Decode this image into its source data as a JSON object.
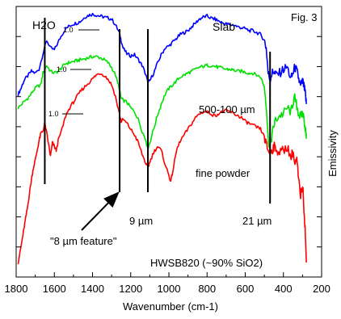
{
  "chart_data": {
    "type": "line",
    "xlabel": "Wavenumber  (cm-1)",
    "ylabel": "Emissivity",
    "xlim": [
      1800,
      200
    ],
    "x_reversed": true,
    "grid": false,
    "x_ticks": [
      1800,
      1600,
      1400,
      1200,
      1000,
      800,
      600,
      400,
      200
    ],
    "y_ticks_labeled": false,
    "series": [
      {
        "name": "Slab",
        "color": "#0000ff",
        "points": [
          [
            1790,
            0.14
          ],
          [
            1775,
            0.2
          ],
          [
            1760,
            0.28
          ],
          [
            1740,
            0.33
          ],
          [
            1720,
            0.38
          ],
          [
            1700,
            0.36
          ],
          [
            1680,
            0.4
          ],
          [
            1660,
            0.56
          ],
          [
            1640,
            0.7
          ],
          [
            1620,
            0.62
          ],
          [
            1600,
            0.6
          ],
          [
            1580,
            0.68
          ],
          [
            1560,
            0.76
          ],
          [
            1540,
            0.82
          ],
          [
            1520,
            0.85
          ],
          [
            1500,
            0.87
          ],
          [
            1480,
            0.88
          ],
          [
            1460,
            0.9
          ],
          [
            1440,
            0.94
          ],
          [
            1420,
            0.96
          ],
          [
            1400,
            0.97
          ],
          [
            1380,
            0.96
          ],
          [
            1360,
            0.95
          ],
          [
            1340,
            0.94
          ],
          [
            1320,
            0.93
          ],
          [
            1300,
            0.92
          ],
          [
            1280,
            0.86
          ],
          [
            1260,
            0.78
          ],
          [
            1250,
            0.7
          ],
          [
            1240,
            0.62
          ],
          [
            1220,
            0.56
          ],
          [
            1200,
            0.54
          ],
          [
            1180,
            0.55
          ],
          [
            1160,
            0.5
          ],
          [
            1140,
            0.44
          ],
          [
            1120,
            0.34
          ],
          [
            1110,
            0.26
          ],
          [
            1100,
            0.28
          ],
          [
            1080,
            0.36
          ],
          [
            1060,
            0.46
          ],
          [
            1040,
            0.55
          ],
          [
            1020,
            0.62
          ],
          [
            1000,
            0.64
          ],
          [
            980,
            0.68
          ],
          [
            960,
            0.72
          ],
          [
            940,
            0.76
          ],
          [
            920,
            0.78
          ],
          [
            900,
            0.8
          ],
          [
            880,
            0.84
          ],
          [
            860,
            0.88
          ],
          [
            840,
            0.92
          ],
          [
            820,
            0.94
          ],
          [
            800,
            0.95
          ],
          [
            780,
            0.93
          ],
          [
            760,
            0.92
          ],
          [
            740,
            0.9
          ],
          [
            720,
            0.88
          ],
          [
            700,
            0.87
          ],
          [
            680,
            0.86
          ],
          [
            660,
            0.86
          ],
          [
            640,
            0.84
          ],
          [
            620,
            0.83
          ],
          [
            600,
            0.82
          ],
          [
            580,
            0.8
          ],
          [
            560,
            0.8
          ],
          [
            540,
            0.78
          ],
          [
            520,
            0.76
          ],
          [
            500,
            0.7
          ],
          [
            490,
            0.62
          ],
          [
            480,
            0.36
          ],
          [
            470,
            0.3
          ],
          [
            460,
            0.36
          ],
          [
            450,
            0.38
          ],
          [
            440,
            0.34
          ],
          [
            420,
            0.36
          ],
          [
            400,
            0.4
          ],
          [
            380,
            0.42
          ],
          [
            360,
            0.3
          ],
          [
            350,
            0.36
          ],
          [
            340,
            0.42
          ],
          [
            330,
            0.38
          ],
          [
            320,
            0.3
          ],
          [
            310,
            0.22
          ],
          [
            300,
            0.28
          ],
          [
            290,
            0.2
          ],
          [
            285,
            0.14
          ],
          [
            280,
            0.04
          ]
        ]
      },
      {
        "name": "500-100 µm",
        "color": "#00e000",
        "points": [
          [
            1790,
            0.0
          ],
          [
            1770,
            0.04
          ],
          [
            1750,
            0.08
          ],
          [
            1730,
            0.12
          ],
          [
            1710,
            0.18
          ],
          [
            1690,
            0.22
          ],
          [
            1670,
            0.24
          ],
          [
            1660,
            0.36
          ],
          [
            1640,
            0.44
          ],
          [
            1620,
            0.38
          ],
          [
            1600,
            0.36
          ],
          [
            1580,
            0.38
          ],
          [
            1560,
            0.42
          ],
          [
            1540,
            0.46
          ],
          [
            1520,
            0.47
          ],
          [
            1500,
            0.48
          ],
          [
            1480,
            0.49
          ],
          [
            1460,
            0.5
          ],
          [
            1440,
            0.51
          ],
          [
            1420,
            0.52
          ],
          [
            1400,
            0.53
          ],
          [
            1380,
            0.53
          ],
          [
            1360,
            0.52
          ],
          [
            1340,
            0.5
          ],
          [
            1320,
            0.47
          ],
          [
            1300,
            0.42
          ],
          [
            1280,
            0.34
          ],
          [
            1260,
            0.2
          ],
          [
            1250,
            0.1
          ],
          [
            1240,
            0.08
          ],
          [
            1220,
            0.06
          ],
          [
            1200,
            0.0
          ],
          [
            1180,
            -0.04
          ],
          [
            1160,
            -0.12
          ],
          [
            1140,
            -0.24
          ],
          [
            1120,
            -0.34
          ],
          [
            1110,
            -0.42
          ],
          [
            1100,
            -0.36
          ],
          [
            1080,
            -0.22
          ],
          [
            1060,
            -0.08
          ],
          [
            1040,
            0.04
          ],
          [
            1020,
            0.14
          ],
          [
            1000,
            0.2
          ],
          [
            980,
            0.24
          ],
          [
            960,
            0.28
          ],
          [
            940,
            0.32
          ],
          [
            920,
            0.34
          ],
          [
            900,
            0.36
          ],
          [
            880,
            0.38
          ],
          [
            860,
            0.4
          ],
          [
            840,
            0.42
          ],
          [
            820,
            0.43
          ],
          [
            800,
            0.44
          ],
          [
            780,
            0.44
          ],
          [
            760,
            0.43
          ],
          [
            740,
            0.42
          ],
          [
            720,
            0.41
          ],
          [
            700,
            0.4
          ],
          [
            680,
            0.4
          ],
          [
            660,
            0.39
          ],
          [
            640,
            0.38
          ],
          [
            620,
            0.38
          ],
          [
            600,
            0.37
          ],
          [
            580,
            0.36
          ],
          [
            560,
            0.36
          ],
          [
            540,
            0.34
          ],
          [
            520,
            0.32
          ],
          [
            500,
            0.22
          ],
          [
            490,
            0.04
          ],
          [
            480,
            -0.32
          ],
          [
            470,
            -0.4
          ],
          [
            460,
            -0.28
          ],
          [
            450,
            -0.18
          ],
          [
            440,
            -0.12
          ],
          [
            420,
            -0.08
          ],
          [
            400,
            -0.06
          ],
          [
            380,
            0.0
          ],
          [
            360,
            -0.04
          ],
          [
            350,
            0.06
          ],
          [
            340,
            0.1
          ],
          [
            330,
            0.02
          ],
          [
            320,
            -0.06
          ],
          [
            310,
            -0.1
          ],
          [
            300,
            -0.04
          ],
          [
            290,
            -0.14
          ],
          [
            285,
            -0.22
          ],
          [
            280,
            -0.32
          ]
        ]
      },
      {
        "name": "fine powder",
        "color": "#ff0000",
        "points": [
          [
            1790,
            -1.6
          ],
          [
            1780,
            -1.5
          ],
          [
            1770,
            -1.38
          ],
          [
            1760,
            -1.26
          ],
          [
            1750,
            -1.14
          ],
          [
            1740,
            -1.02
          ],
          [
            1730,
            -0.88
          ],
          [
            1720,
            -0.74
          ],
          [
            1710,
            -0.62
          ],
          [
            1700,
            -0.54
          ],
          [
            1690,
            -0.44
          ],
          [
            1680,
            -0.34
          ],
          [
            1670,
            -0.26
          ],
          [
            1660,
            -0.24
          ],
          [
            1650,
            -0.16
          ],
          [
            1640,
            -0.26
          ],
          [
            1630,
            -0.38
          ],
          [
            1620,
            -0.5
          ],
          [
            1610,
            -0.36
          ],
          [
            1600,
            -0.4
          ],
          [
            1590,
            -0.44
          ],
          [
            1580,
            -0.34
          ],
          [
            1560,
            -0.22
          ],
          [
            1540,
            -0.08
          ],
          [
            1520,
            0.0
          ],
          [
            1500,
            0.06
          ],
          [
            1480,
            0.12
          ],
          [
            1460,
            0.18
          ],
          [
            1440,
            0.22
          ],
          [
            1420,
            0.26
          ],
          [
            1400,
            0.3
          ],
          [
            1380,
            0.34
          ],
          [
            1360,
            0.36
          ],
          [
            1340,
            0.34
          ],
          [
            1320,
            0.3
          ],
          [
            1300,
            0.24
          ],
          [
            1280,
            0.12
          ],
          [
            1260,
            -0.06
          ],
          [
            1250,
            -0.14
          ],
          [
            1240,
            -0.12
          ],
          [
            1220,
            -0.16
          ],
          [
            1200,
            -0.22
          ],
          [
            1180,
            -0.28
          ],
          [
            1160,
            -0.36
          ],
          [
            1140,
            -0.48
          ],
          [
            1120,
            -0.58
          ],
          [
            1110,
            -0.62
          ],
          [
            1100,
            -0.56
          ],
          [
            1080,
            -0.46
          ],
          [
            1060,
            -0.4
          ],
          [
            1040,
            -0.44
          ],
          [
            1020,
            -0.58
          ],
          [
            1000,
            -0.7
          ],
          [
            990,
            -0.76
          ],
          [
            980,
            -0.66
          ],
          [
            960,
            -0.44
          ],
          [
            940,
            -0.34
          ],
          [
            920,
            -0.28
          ],
          [
            900,
            -0.22
          ],
          [
            880,
            -0.16
          ],
          [
            860,
            -0.1
          ],
          [
            840,
            -0.06
          ],
          [
            820,
            -0.04
          ],
          [
            800,
            -0.04
          ],
          [
            780,
            -0.06
          ],
          [
            760,
            -0.08
          ],
          [
            740,
            -0.06
          ],
          [
            720,
            -0.04
          ],
          [
            700,
            -0.03
          ],
          [
            680,
            -0.04
          ],
          [
            660,
            -0.06
          ],
          [
            640,
            -0.08
          ],
          [
            620,
            -0.1
          ],
          [
            600,
            -0.14
          ],
          [
            580,
            -0.16
          ],
          [
            560,
            -0.18
          ],
          [
            540,
            -0.2
          ],
          [
            520,
            -0.22
          ],
          [
            500,
            -0.3
          ],
          [
            490,
            -0.38
          ],
          [
            480,
            -0.44
          ],
          [
            470,
            -0.46
          ],
          [
            460,
            -0.44
          ],
          [
            450,
            -0.4
          ],
          [
            440,
            -0.42
          ],
          [
            420,
            -0.46
          ],
          [
            400,
            -0.44
          ],
          [
            380,
            -0.4
          ],
          [
            360,
            -0.52
          ],
          [
            350,
            -0.44
          ],
          [
            340,
            -0.6
          ],
          [
            330,
            -0.54
          ],
          [
            320,
            -0.76
          ],
          [
            310,
            -0.9
          ],
          [
            300,
            -0.8
          ],
          [
            290,
            -1.1
          ],
          [
            285,
            -1.3
          ],
          [
            280,
            -1.6
          ]
        ]
      }
    ],
    "annotations": {
      "fig_label": "Fig. 3",
      "h2o": "H2O",
      "slab": "Slab",
      "grain": "500-100 µm",
      "powder": "fine powder",
      "nine": "9 µm",
      "twentyone": "21 µm",
      "feature": "\"8 µm feature\"",
      "sample": "HWSB820  (~90% SiO2)",
      "one_a": "1.0",
      "one_b": "1.0",
      "one_c": "1.0"
    },
    "vertical_markers_cm1": [
      1650,
      1258,
      1110,
      470
    ]
  }
}
